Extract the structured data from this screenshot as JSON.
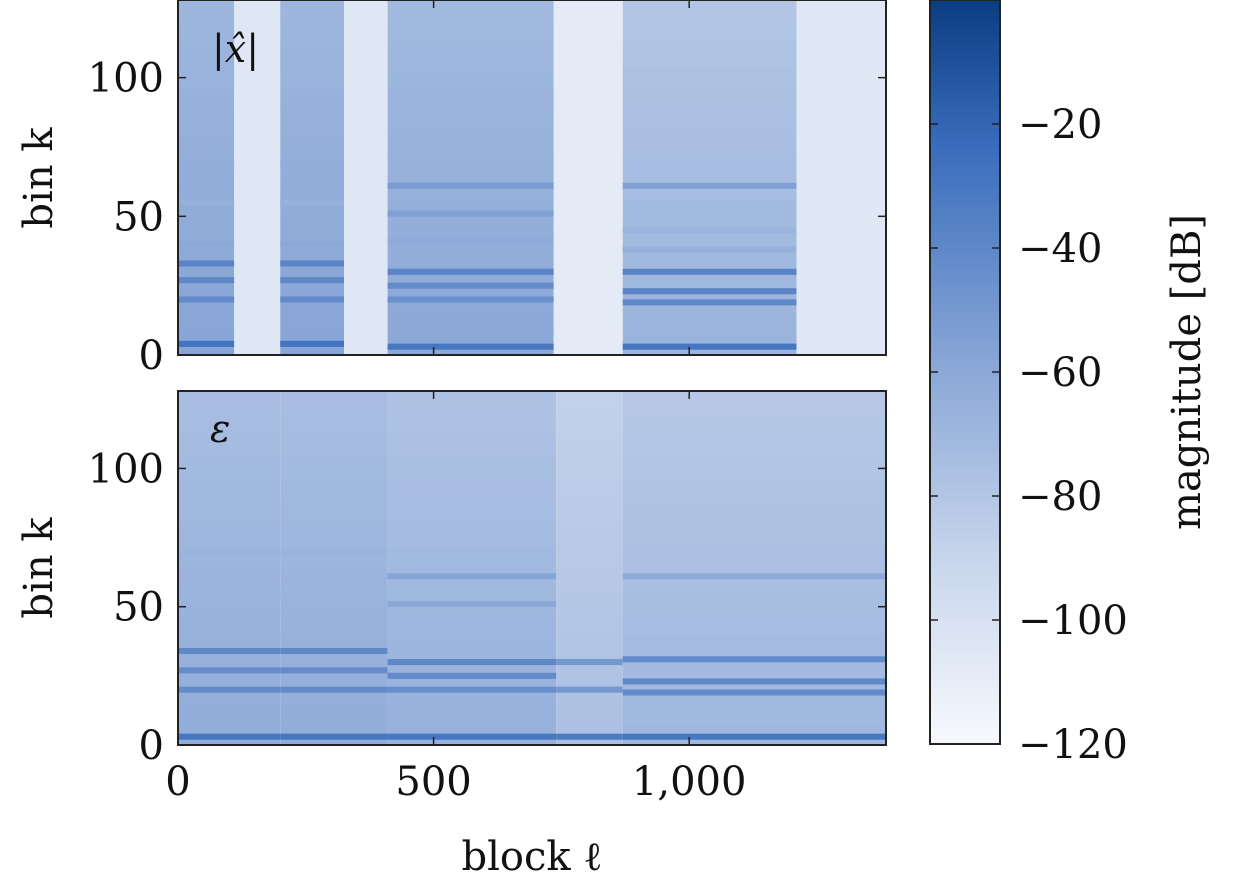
{
  "chart_data": [
    {
      "type": "heatmap",
      "panel_label": "|x̂|",
      "xlabel": "",
      "ylabel": "bin k",
      "xlim": [
        0,
        1385
      ],
      "ylim": [
        0,
        128
      ],
      "yticks": [
        0,
        50,
        100
      ],
      "ytick_labels": [
        "0",
        "50",
        "100"
      ],
      "xtick_labels": [],
      "segments": [
        {
          "x": [
            0,
            110
          ],
          "level": -70,
          "lines": [
            {
              "k": 4,
              "db": -28
            },
            {
              "k": 20,
              "db": -42
            },
            {
              "k": 27,
              "db": -40
            },
            {
              "k": 33,
              "db": -38
            },
            {
              "k": 40,
              "db": -60
            },
            {
              "k": 55,
              "db": -65
            },
            {
              "k": 69,
              "db": -64
            }
          ]
        },
        {
          "x": [
            110,
            200
          ],
          "level": -105,
          "lines": []
        },
        {
          "x": [
            200,
            325
          ],
          "level": -70,
          "lines": [
            {
              "k": 4,
              "db": -28
            },
            {
              "k": 20,
              "db": -42
            },
            {
              "k": 27,
              "db": -40
            },
            {
              "k": 33,
              "db": -38
            },
            {
              "k": 40,
              "db": -60
            },
            {
              "k": 55,
              "db": -65
            },
            {
              "k": 69,
              "db": -64
            }
          ]
        },
        {
          "x": [
            325,
            410
          ],
          "level": -105,
          "lines": []
        },
        {
          "x": [
            410,
            735
          ],
          "level": -72,
          "lines": [
            {
              "k": 3,
              "db": -30
            },
            {
              "k": 20,
              "db": -45
            },
            {
              "k": 25,
              "db": -42
            },
            {
              "k": 30,
              "db": -38
            },
            {
              "k": 41,
              "db": -62
            },
            {
              "k": 51,
              "db": -55
            },
            {
              "k": 61,
              "db": -52
            }
          ]
        },
        {
          "x": [
            735,
            870
          ],
          "level": -108,
          "lines": []
        },
        {
          "x": [
            870,
            1210
          ],
          "level": -80,
          "lines": [
            {
              "k": 3,
              "db": -30
            },
            {
              "k": 19,
              "db": -40
            },
            {
              "k": 23,
              "db": -38
            },
            {
              "k": 30,
              "db": -38
            },
            {
              "k": 38,
              "db": -65
            },
            {
              "k": 45,
              "db": -68
            },
            {
              "k": 61,
              "db": -55
            }
          ]
        },
        {
          "x": [
            1210,
            1385
          ],
          "level": -106,
          "lines": []
        }
      ]
    },
    {
      "type": "heatmap",
      "panel_label": "ε",
      "xlabel": "block ℓ",
      "ylabel": "bin k",
      "xlim": [
        0,
        1385
      ],
      "ylim": [
        0,
        128
      ],
      "yticks": [
        0,
        50,
        100
      ],
      "ytick_labels": [
        "0",
        "50",
        "100"
      ],
      "xticks": [
        0,
        500,
        1000
      ],
      "xtick_labels": [
        "0",
        "500",
        "1,000"
      ],
      "segments": [
        {
          "x": [
            0,
            200
          ],
          "level": -75,
          "lines": [
            {
              "k": 3,
              "db": -30
            },
            {
              "k": 20,
              "db": -42
            },
            {
              "k": 27,
              "db": -42
            },
            {
              "k": 34,
              "db": -40
            },
            {
              "k": 54,
              "db": -68
            },
            {
              "k": 69,
              "db": -68
            }
          ]
        },
        {
          "x": [
            200,
            410
          ],
          "level": -75,
          "lines": [
            {
              "k": 3,
              "db": -30
            },
            {
              "k": 20,
              "db": -42
            },
            {
              "k": 27,
              "db": -42
            },
            {
              "k": 34,
              "db": -40
            },
            {
              "k": 54,
              "db": -68
            },
            {
              "k": 69,
              "db": -68
            }
          ]
        },
        {
          "x": [
            410,
            740
          ],
          "level": -78,
          "lines": [
            {
              "k": 3,
              "db": -30
            },
            {
              "k": 20,
              "db": -44
            },
            {
              "k": 25,
              "db": -42
            },
            {
              "k": 30,
              "db": -40
            },
            {
              "k": 51,
              "db": -60
            },
            {
              "k": 61,
              "db": -58
            }
          ]
        },
        {
          "x": [
            740,
            870
          ],
          "level": -88,
          "lines": [
            {
              "k": 3,
              "db": -32
            },
            {
              "k": 20,
              "db": -50
            },
            {
              "k": 30,
              "db": -50
            }
          ]
        },
        {
          "x": [
            870,
            1385
          ],
          "level": -82,
          "lines": [
            {
              "k": 3,
              "db": -30
            },
            {
              "k": 19,
              "db": -42
            },
            {
              "k": 23,
              "db": -40
            },
            {
              "k": 31,
              "db": -42
            },
            {
              "k": 61,
              "db": -62
            }
          ]
        }
      ]
    },
    {
      "type": "colorbar",
      "label": "magnitude [dB]",
      "range": [
        -120,
        0
      ],
      "ticks": [
        -20,
        -40,
        -60,
        -80,
        -100,
        -120
      ],
      "tick_labels": [
        "−20",
        "−40",
        "−60",
        "−80",
        "−100",
        "−120"
      ],
      "colors": {
        "low": "#f7f9fd",
        "high": "#0b3d82"
      }
    }
  ]
}
